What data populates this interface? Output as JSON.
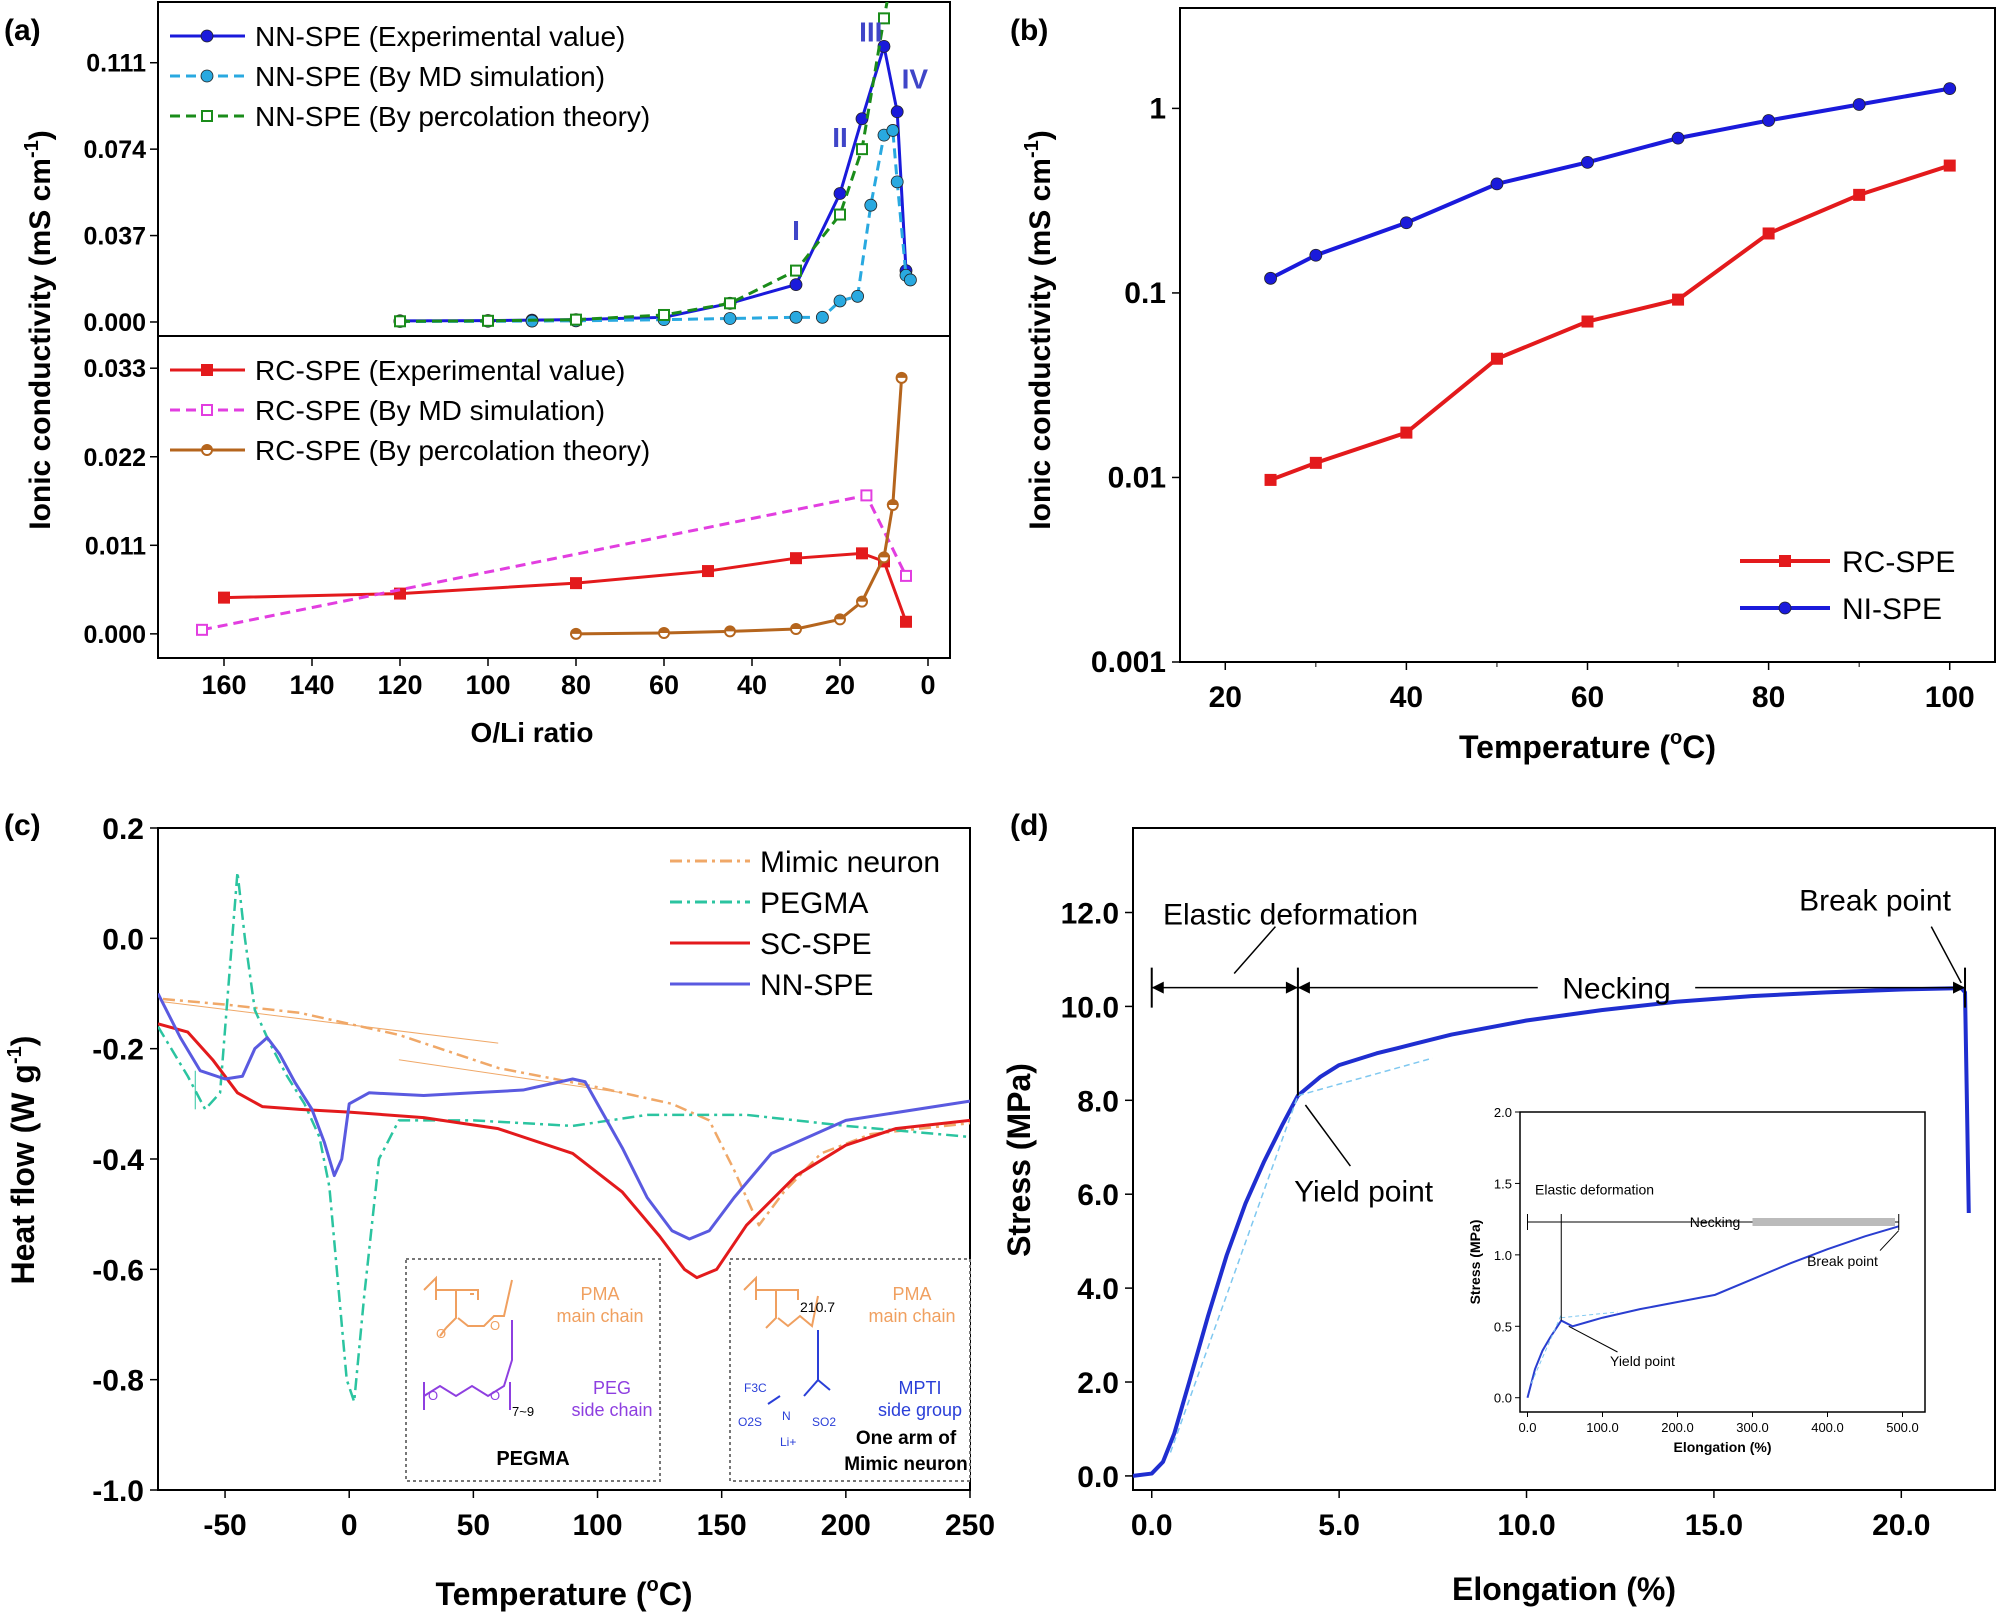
{
  "chart_data": [
    {
      "panel": "(a)",
      "type": "line",
      "xlabel": "O/Li ratio",
      "ylabel": "Ionic conductivity (mS cm-1)",
      "ylabel_parts": {
        "main": "Ionic conductivity (mS cm",
        "sup": "-1",
        "end": ")"
      },
      "xlim": [
        175,
        -5
      ],
      "xticks": [
        160,
        140,
        120,
        100,
        80,
        60,
        40,
        20,
        0
      ],
      "subplots": [
        {
          "name": "top",
          "ylim": [
            -0.006,
            0.137
          ],
          "yticks": [
            "0.000",
            "0.037",
            "0.074",
            "0.111"
          ],
          "ytick_values": [
            0,
            0.037,
            0.074,
            0.111
          ],
          "series": [
            {
              "name": "NN-SPE (Experimental value)",
              "color": "#1a1adb",
              "marker": "circle",
              "dash": "solid",
              "x": [
                120,
                100,
                90,
                80,
                60,
                45,
                30,
                20,
                15,
                10,
                7,
                5
              ],
              "y": [
                0.0005,
                0.0006,
                0.0008,
                0.001,
                0.002,
                0.008,
                0.016,
                0.055,
                0.087,
                0.118,
                0.09,
                0.022
              ]
            },
            {
              "name": "NN-SPE (By MD simulation)",
              "color": "#29a9e0",
              "marker": "circle",
              "dash": "dash",
              "x": [
                120,
                100,
                90,
                80,
                60,
                45,
                30,
                24,
                20,
                16,
                13,
                10,
                8,
                7,
                5,
                4
              ],
              "y": [
                0.0002,
                0.0003,
                0.0004,
                0.0005,
                0.001,
                0.0015,
                0.002,
                0.002,
                0.009,
                0.011,
                0.05,
                0.08,
                0.082,
                0.06,
                0.02,
                0.018
              ]
            },
            {
              "name": "NN-SPE (By percolation theory)",
              "color": "#1a8c1a",
              "marker": "square-open",
              "dash": "dash",
              "x": [
                120,
                100,
                80,
                60,
                45,
                30,
                20,
                15,
                10,
                8
              ],
              "y": [
                0.0003,
                0.0005,
                0.001,
                0.003,
                0.008,
                0.022,
                0.046,
                0.074,
                0.13,
                0.15
              ]
            }
          ],
          "annotations": [
            "I",
            "II",
            "III",
            "IV"
          ],
          "annotation_pos": [
            [
              30,
              0.035
            ],
            [
              20,
              0.075
            ],
            [
              13,
              0.12
            ],
            [
              3,
              0.1
            ]
          ]
        },
        {
          "name": "bottom",
          "ylim": [
            -0.003,
            0.037
          ],
          "yticks": [
            "0.000",
            "0.011",
            "0.022",
            "0.033"
          ],
          "ytick_values": [
            0,
            0.011,
            0.022,
            0.033
          ],
          "series": [
            {
              "name": "RC-SPE (Experimental value)",
              "color": "#e31a1c",
              "marker": "square",
              "dash": "solid",
              "x": [
                160,
                120,
                80,
                50,
                30,
                15,
                10,
                5
              ],
              "y": [
                0.0045,
                0.005,
                0.0063,
                0.0078,
                0.0094,
                0.01,
                0.009,
                0.0015
              ]
            },
            {
              "name": "RC-SPE (By MD simulation)",
              "color": "#e23ee0",
              "marker": "square-open",
              "dash": "dash",
              "x": [
                165,
                14,
                5
              ],
              "y": [
                0.0005,
                0.0172,
                0.0072
              ]
            },
            {
              "name": "RC-SPE (By percolation theory)",
              "color": "#b5651d",
              "marker": "circle-half",
              "dash": "solid",
              "x": [
                80,
                60,
                45,
                30,
                20,
                15,
                10,
                8,
                6
              ],
              "y": [
                0.0,
                0.0001,
                0.0003,
                0.0006,
                0.0018,
                0.004,
                0.0095,
                0.016,
                0.0318
              ]
            }
          ]
        }
      ]
    },
    {
      "panel": "(b)",
      "type": "line",
      "xlabel": "Temperature (oC)",
      "xlabel_parts": {
        "main": "Temperature (",
        "sup": "o",
        "end": "C)"
      },
      "ylabel": "Ionic conductivity (mS cm-1)",
      "ylabel_parts": {
        "main": "Ionic conductivity (mS cm",
        "sup": "-1",
        "end": ")"
      },
      "yscale": "log",
      "xlim": [
        15,
        105
      ],
      "ylim": [
        0.001,
        3.5
      ],
      "xticks": [
        20,
        40,
        60,
        80,
        100
      ],
      "yticks": [
        "0.001",
        "0.01",
        "0.1",
        "1"
      ],
      "ytick_values": [
        0.001,
        0.01,
        0.1,
        1
      ],
      "legend": "bottom-right",
      "series": [
        {
          "name": "RC-SPE",
          "color": "#e31a1c",
          "marker": "square",
          "x": [
            25,
            30,
            40,
            50,
            60,
            70,
            80,
            90,
            100
          ],
          "y": [
            0.0097,
            0.012,
            0.0175,
            0.044,
            0.07,
            0.092,
            0.21,
            0.34,
            0.49
          ]
        },
        {
          "name": "NI-SPE",
          "color": "#1a1adb",
          "marker": "circle",
          "x": [
            25,
            30,
            40,
            50,
            60,
            70,
            80,
            90,
            100
          ],
          "y": [
            0.12,
            0.16,
            0.24,
            0.39,
            0.51,
            0.69,
            0.86,
            1.05,
            1.28
          ]
        }
      ]
    },
    {
      "panel": "(c)",
      "type": "line",
      "xlabel": "Temperature (oC)",
      "xlabel_parts": {
        "main": "Temperature (",
        "sup": "o",
        "end": "C)"
      },
      "ylabel": "Heat flow (W g-1)",
      "ylabel_parts": {
        "main": "Heat flow (W g",
        "sup": "-1",
        "end": ")"
      },
      "xlim": [
        -77,
        250
      ],
      "ylim": [
        -1.0,
        0.2
      ],
      "xticks": [
        -50,
        0,
        50,
        100,
        150,
        200,
        250
      ],
      "yticks": [
        "0.2",
        "0.0",
        "-0.2",
        "-0.4",
        "-0.6",
        "-0.8",
        "-1.0"
      ],
      "ytick_values": [
        0.2,
        0.0,
        -0.2,
        -0.4,
        -0.6,
        -0.8,
        -1.0
      ],
      "legend": "top-right",
      "series": [
        {
          "name": "Mimic neuron",
          "color": "#f0a868",
          "dash": "dashdot",
          "x": [
            -75,
            -50,
            -20,
            20,
            60,
            100,
            130,
            145,
            155,
            165,
            175,
            190,
            210,
            230,
            250
          ],
          "y": [
            -0.11,
            -0.12,
            -0.135,
            -0.175,
            -0.235,
            -0.27,
            -0.3,
            -0.33,
            -0.42,
            -0.52,
            -0.46,
            -0.39,
            -0.355,
            -0.345,
            -0.335
          ]
        },
        {
          "name": "PEGMA",
          "color": "#2bc4a0",
          "dash": "dashdot",
          "x": [
            -77,
            -65,
            -58,
            -52,
            -48,
            -45,
            -42,
            -38,
            -32,
            -25,
            -18,
            -12,
            -8,
            -4,
            -1,
            2,
            6,
            12,
            20,
            50,
            90,
            120,
            160,
            200,
            250
          ],
          "y": [
            -0.16,
            -0.25,
            -0.31,
            -0.28,
            -0.05,
            0.12,
            0.0,
            -0.13,
            -0.19,
            -0.25,
            -0.3,
            -0.36,
            -0.45,
            -0.65,
            -0.8,
            -0.84,
            -0.65,
            -0.4,
            -0.33,
            -0.33,
            -0.34,
            -0.32,
            -0.32,
            -0.34,
            -0.36
          ]
        },
        {
          "name": "SC-SPE",
          "color": "#e31a1c",
          "dash": "solid",
          "x": [
            -77,
            -65,
            -55,
            -45,
            -35,
            -20,
            0,
            30,
            60,
            90,
            110,
            125,
            135,
            140,
            148,
            160,
            180,
            200,
            220,
            250
          ],
          "y": [
            -0.155,
            -0.17,
            -0.22,
            -0.28,
            -0.305,
            -0.31,
            -0.315,
            -0.325,
            -0.345,
            -0.39,
            -0.46,
            -0.54,
            -0.6,
            -0.615,
            -0.6,
            -0.52,
            -0.43,
            -0.375,
            -0.345,
            -0.33
          ]
        },
        {
          "name": "NN-SPE",
          "color": "#5a5ae0",
          "dash": "solid",
          "x": [
            -77,
            -68,
            -60,
            -50,
            -43,
            -38,
            -33,
            -28,
            -22,
            -15,
            -10,
            -6,
            -3,
            0,
            8,
            30,
            50,
            70,
            80,
            90,
            95,
            100,
            110,
            120,
            130,
            137,
            145,
            155,
            170,
            200,
            250
          ],
          "y": [
            -0.1,
            -0.18,
            -0.24,
            -0.255,
            -0.25,
            -0.2,
            -0.18,
            -0.21,
            -0.26,
            -0.31,
            -0.37,
            -0.43,
            -0.4,
            -0.3,
            -0.28,
            -0.285,
            -0.28,
            -0.275,
            -0.265,
            -0.255,
            -0.26,
            -0.3,
            -0.38,
            -0.47,
            -0.53,
            -0.545,
            -0.53,
            -0.47,
            -0.39,
            -0.33,
            -0.295
          ]
        }
      ],
      "inset_texts": {
        "left": {
          "a": "PMA",
          "b": "main chain",
          "c": "PEG",
          "d": "side chain",
          "title": "PEGMA",
          "sub": "7~9"
        },
        "right": {
          "a": "PMA",
          "b": "main chain",
          "c": "MPTI",
          "d": "side group",
          "title1": "One arm of",
          "title2": "Mimic neuron",
          "sub": "210.7",
          "f3c": "F3C",
          "o2s": "O2S",
          "so2": "SO2",
          "n": "N",
          "li": "Li+"
        }
      }
    },
    {
      "panel": "(d)",
      "type": "line",
      "xlabel": "Elongation (%)",
      "ylabel": "Stress (MPa)",
      "xlim": [
        -0.5,
        22.5
      ],
      "ylim": [
        -0.3,
        13.8
      ],
      "xticks": [
        "0.0",
        "5.0",
        "10.0",
        "15.0",
        "20.0"
      ],
      "xtick_values": [
        0,
        5,
        10,
        15,
        20
      ],
      "yticks": [
        "0.0",
        "2.0",
        "4.0",
        "6.0",
        "8.0",
        "10.0",
        "12.0"
      ],
      "ytick_values": [
        0,
        2,
        4,
        6,
        8,
        10,
        12
      ],
      "series": [
        {
          "name": "Stress-strain",
          "color": "#1f2ed0",
          "x": [
            -0.5,
            0.0,
            0.3,
            0.6,
            1.0,
            1.5,
            2.0,
            2.5,
            3.0,
            3.5,
            3.9,
            4.5,
            5.0,
            6.0,
            7.0,
            8.0,
            9.0,
            10.0,
            12.0,
            14.0,
            16.0,
            18.0,
            20.0,
            21.0,
            21.6,
            21.7,
            21.75,
            21.8
          ],
          "y": [
            0.0,
            0.05,
            0.3,
            0.9,
            2.0,
            3.4,
            4.7,
            5.8,
            6.7,
            7.5,
            8.1,
            8.5,
            8.75,
            9.0,
            9.2,
            9.4,
            9.55,
            9.7,
            9.92,
            10.1,
            10.22,
            10.3,
            10.36,
            10.38,
            10.39,
            10.3,
            8.0,
            5.6
          ]
        }
      ],
      "annotations": {
        "elastic": "Elastic deformation",
        "necking": "Necking",
        "yield": "Yield point",
        "break": "Break point"
      },
      "inset": {
        "xlabel": "Elongation (%)",
        "ylabel": "Stress (MPa)",
        "xlim": [
          -10,
          530
        ],
        "ylim": [
          -0.1,
          2.0
        ],
        "xticks": [
          "0.0",
          "100.0",
          "200.0",
          "300.0",
          "400.0",
          "500.0"
        ],
        "xtick_values": [
          0,
          100,
          200,
          300,
          400,
          500
        ],
        "yticks": [
          "0.0",
          "0.5",
          "1.0",
          "1.5",
          "2.0"
        ],
        "ytick_values": [
          0,
          0.5,
          1.0,
          1.5,
          2.0
        ],
        "x": [
          0,
          10,
          20,
          30,
          40,
          45,
          60,
          80,
          100,
          150,
          200,
          250,
          300,
          350,
          400,
          450,
          495
        ],
        "y": [
          0.0,
          0.2,
          0.33,
          0.42,
          0.5,
          0.54,
          0.5,
          0.53,
          0.56,
          0.62,
          0.67,
          0.72,
          0.83,
          0.94,
          1.04,
          1.13,
          1.2
        ],
        "annotations": {
          "elastic": "Elastic deformation",
          "necking": "Necking",
          "yield": "Yield point",
          "break": "Break point"
        }
      }
    }
  ]
}
